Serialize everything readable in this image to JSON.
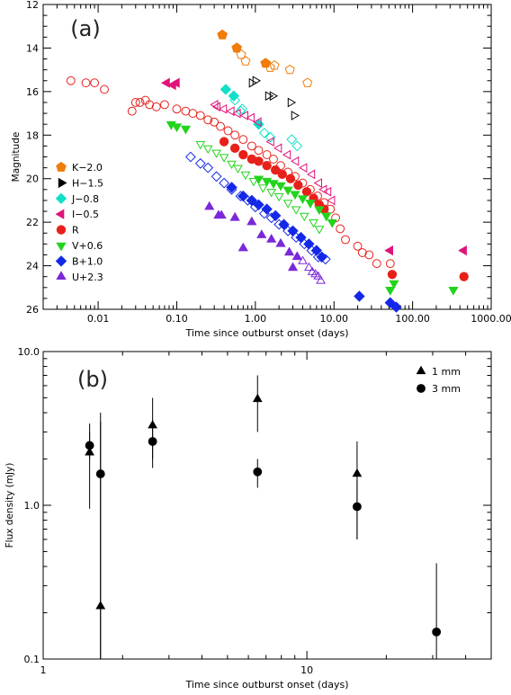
{
  "chart_data": [
    {
      "type": "scatter",
      "panel_label": "(a)",
      "xlabel": "Time since outburst onset (days)",
      "ylabel": "Magnitude",
      "xscale": "log",
      "xlim": [
        0.002,
        1000
      ],
      "ylim": [
        26,
        12
      ],
      "y_reversed": true,
      "x_ticks": [
        0.01,
        0.1,
        1,
        10,
        100,
        1000
      ],
      "x_tick_labels": [
        "0.01",
        "0.10",
        "1.00",
        "10.00",
        "100.00",
        "1000.00"
      ],
      "y_ticks": [
        12,
        14,
        16,
        18,
        20,
        22,
        24,
        26
      ],
      "y_tick_labels": [
        "12",
        "14",
        "16",
        "18",
        "20",
        "22",
        "24",
        "26"
      ],
      "legend_position": "left-middle",
      "series": [
        {
          "name": "K−2.0",
          "marker": "pentagon",
          "color": "#f07c0a",
          "filled": [
            [
              0.38,
              13.4
            ],
            [
              0.58,
              14.0
            ],
            [
              1.35,
              14.7
            ]
          ],
          "open": [
            [
              0.66,
              14.3
            ],
            [
              0.75,
              14.6
            ],
            [
              1.55,
              14.9
            ],
            [
              1.75,
              14.8
            ],
            [
              2.75,
              15.0
            ],
            [
              4.6,
              15.6
            ]
          ]
        },
        {
          "name": "H−1.5",
          "marker": "triangle-right",
          "color": "#000000",
          "filled": [],
          "open": [
            [
              0.9,
              15.6
            ],
            [
              1.0,
              15.5
            ],
            [
              1.45,
              16.2
            ],
            [
              1.65,
              16.2
            ],
            [
              2.8,
              16.5
            ],
            [
              3.1,
              17.1
            ]
          ]
        },
        {
          "name": "J−0.8",
          "marker": "diamond",
          "color": "#10e0c8",
          "filled": [
            [
              0.42,
              15.9
            ],
            [
              0.53,
              16.2
            ],
            [
              1.1,
              17.5
            ]
          ],
          "open": [
            [
              0.55,
              16.4
            ],
            [
              0.65,
              16.9
            ],
            [
              0.68,
              16.8
            ],
            [
              1.3,
              17.9
            ],
            [
              1.55,
              18.1
            ],
            [
              2.9,
              18.2
            ],
            [
              3.4,
              18.5
            ]
          ]
        },
        {
          "name": "I−0.5",
          "marker": "triangle-left",
          "color": "#e0147a",
          "filled": [
            [
              0.075,
              15.6
            ],
            [
              0.09,
              15.7
            ],
            [
              0.1,
              15.6
            ],
            [
              52,
              23.3
            ],
            [
              450,
              23.3
            ]
          ],
          "open": [
            [
              0.31,
              16.6
            ],
            [
              0.33,
              16.7
            ],
            [
              0.4,
              16.8
            ],
            [
              0.5,
              16.9
            ],
            [
              0.6,
              17.0
            ],
            [
              0.75,
              17.1
            ],
            [
              0.9,
              17.2
            ],
            [
              1.1,
              17.4
            ],
            [
              1.6,
              18.3
            ],
            [
              2.0,
              18.6
            ],
            [
              2.6,
              18.9
            ],
            [
              3.3,
              19.2
            ],
            [
              4.2,
              19.5
            ],
            [
              5.3,
              19.8
            ],
            [
              6.5,
              20.2
            ],
            [
              7.5,
              20.5
            ],
            [
              8.5,
              20.6
            ],
            [
              9.5,
              21.0
            ]
          ]
        },
        {
          "name": "R",
          "marker": "circle",
          "color": "#e8201a",
          "filled": [
            [
              0.4,
              18.3
            ],
            [
              0.55,
              18.6
            ],
            [
              0.7,
              18.9
            ],
            [
              0.9,
              19.1
            ],
            [
              1.1,
              19.2
            ],
            [
              1.4,
              19.4
            ],
            [
              1.8,
              19.6
            ],
            [
              2.2,
              19.8
            ],
            [
              2.8,
              20.0
            ],
            [
              3.5,
              20.3
            ],
            [
              4.5,
              20.6
            ],
            [
              5.5,
              20.9
            ],
            [
              6.5,
              21.2
            ],
            [
              7.5,
              21.4
            ],
            [
              55,
              24.4
            ],
            [
              450,
              24.5
            ]
          ],
          "open": [
            [
              0.0045,
              15.5
            ],
            [
              0.007,
              15.6
            ],
            [
              0.009,
              15.6
            ],
            [
              0.012,
              15.9
            ],
            [
              0.027,
              16.9
            ],
            [
              0.03,
              16.5
            ],
            [
              0.034,
              16.5
            ],
            [
              0.04,
              16.4
            ],
            [
              0.045,
              16.6
            ],
            [
              0.055,
              16.7
            ],
            [
              0.07,
              16.6
            ],
            [
              0.1,
              16.8
            ],
            [
              0.13,
              16.9
            ],
            [
              0.16,
              17.0
            ],
            [
              0.2,
              17.1
            ],
            [
              0.25,
              17.3
            ],
            [
              0.3,
              17.4
            ],
            [
              0.36,
              17.6
            ],
            [
              0.45,
              17.8
            ],
            [
              0.55,
              18.0
            ],
            [
              0.7,
              18.2
            ],
            [
              0.9,
              18.5
            ],
            [
              1.1,
              18.7
            ],
            [
              1.4,
              18.9
            ],
            [
              1.7,
              19.1
            ],
            [
              2.1,
              19.4
            ],
            [
              2.6,
              19.7
            ],
            [
              3.2,
              19.9
            ],
            [
              4.0,
              20.2
            ],
            [
              5.0,
              20.5
            ],
            [
              6.2,
              20.8
            ],
            [
              7.5,
              21.1
            ],
            [
              9,
              21.4
            ],
            [
              10.5,
              21.8
            ],
            [
              12,
              22.3
            ],
            [
              14,
              22.8
            ],
            [
              20,
              23.1
            ],
            [
              23,
              23.4
            ],
            [
              28,
              23.5
            ],
            [
              35,
              23.9
            ],
            [
              52,
              23.9
            ]
          ]
        },
        {
          "name": "V+0.6",
          "marker": "triangle-down",
          "color": "#22d41c",
          "filled": [
            [
              0.085,
              17.5
            ],
            [
              0.1,
              17.6
            ],
            [
              0.13,
              17.7
            ],
            [
              1.1,
              20.0
            ],
            [
              1.4,
              20.1
            ],
            [
              1.7,
              20.2
            ],
            [
              2.1,
              20.3
            ],
            [
              2.6,
              20.5
            ],
            [
              3.2,
              20.7
            ],
            [
              4.0,
              20.9
            ],
            [
              5,
              21.1
            ],
            [
              6.5,
              21.4
            ],
            [
              8,
              21.7
            ],
            [
              9.5,
              22.0
            ],
            [
              52,
              25.1
            ],
            [
              58,
              24.8
            ],
            [
              330,
              25.1
            ]
          ],
          "open": [
            [
              0.2,
              18.4
            ],
            [
              0.25,
              18.6
            ],
            [
              0.32,
              18.8
            ],
            [
              0.4,
              19.0
            ],
            [
              0.5,
              19.3
            ],
            [
              0.6,
              19.5
            ],
            [
              0.75,
              19.8
            ],
            [
              0.95,
              20.1
            ],
            [
              1.25,
              20.4
            ],
            [
              1.6,
              20.6
            ],
            [
              2.0,
              20.8
            ],
            [
              2.6,
              21.1
            ],
            [
              3.3,
              21.4
            ],
            [
              4.2,
              21.7
            ],
            [
              5.5,
              22.0
            ],
            [
              6.5,
              22.3
            ]
          ]
        },
        {
          "name": "B+1.0",
          "marker": "diamond",
          "color": "#1428e8",
          "filled": [
            [
              0.5,
              20.4
            ],
            [
              0.7,
              20.8
            ],
            [
              0.9,
              21.0
            ],
            [
              1.1,
              21.2
            ],
            [
              1.4,
              21.4
            ],
            [
              1.8,
              21.7
            ],
            [
              2.3,
              22.1
            ],
            [
              3.0,
              22.4
            ],
            [
              3.8,
              22.7
            ],
            [
              4.8,
              23.0
            ],
            [
              6,
              23.3
            ],
            [
              7,
              23.6
            ],
            [
              21,
              25.4
            ],
            [
              52,
              25.7
            ],
            [
              62,
              25.9
            ]
          ],
          "open": [
            [
              0.15,
              19.0
            ],
            [
              0.2,
              19.3
            ],
            [
              0.25,
              19.5
            ],
            [
              0.32,
              19.9
            ],
            [
              0.4,
              20.2
            ],
            [
              0.5,
              20.5
            ],
            [
              0.65,
              20.8
            ],
            [
              0.8,
              21.0
            ],
            [
              1.0,
              21.3
            ],
            [
              1.3,
              21.6
            ],
            [
              1.6,
              21.8
            ],
            [
              2.0,
              22.1
            ],
            [
              2.6,
              22.4
            ],
            [
              3.3,
              22.7
            ],
            [
              4.2,
              23.0
            ],
            [
              5.2,
              23.3
            ],
            [
              6.3,
              23.6
            ],
            [
              7.8,
              23.7
            ]
          ]
        },
        {
          "name": "U+2.3",
          "marker": "triangle-up",
          "color": "#7a28d8",
          "filled": [
            [
              0.26,
              21.3
            ],
            [
              0.34,
              21.7
            ],
            [
              0.37,
              21.7
            ],
            [
              0.55,
              21.8
            ],
            [
              0.9,
              22.0
            ],
            [
              1.2,
              22.6
            ],
            [
              1.6,
              22.8
            ],
            [
              2.1,
              23.0
            ],
            [
              0.7,
              23.2
            ],
            [
              2.7,
              23.4
            ],
            [
              3.4,
              23.6
            ],
            [
              3.0,
              24.1
            ]
          ],
          "open": [
            [
              4.0,
              23.8
            ],
            [
              4.8,
              24.1
            ],
            [
              5.3,
              24.3
            ],
            [
              5.8,
              24.4
            ],
            [
              6.3,
              24.5
            ],
            [
              6.8,
              24.7
            ]
          ]
        }
      ]
    },
    {
      "type": "scatter",
      "panel_label": "(b)",
      "xlabel": "Time since outburst onset (days)",
      "ylabel": "Flux density (mJy)",
      "xscale": "log",
      "yscale": "log",
      "xlim": [
        1,
        50
      ],
      "ylim": [
        0.1,
        10
      ],
      "x_ticks": [
        1,
        10
      ],
      "x_tick_labels": [
        "1",
        "10"
      ],
      "y_ticks": [
        0.1,
        1,
        10
      ],
      "y_tick_labels": [
        "0.1",
        "1.0",
        "10.0"
      ],
      "legend_position": "top-right",
      "series": [
        {
          "name": "1 mm",
          "marker": "triangle-up",
          "color": "#000000",
          "points": [
            {
              "x": 1.5,
              "y": 2.2,
              "ylo": 0.95,
              "yhi": 3.4
            },
            {
              "x": 1.65,
              "y": 0.22,
              "ylo": 0.1,
              "yhi": 4.0
            },
            {
              "x": 2.6,
              "y": 3.3,
              "ylo": 2.0,
              "yhi": 5.0
            },
            {
              "x": 6.5,
              "y": 4.9,
              "ylo": 3.0,
              "yhi": 7.0
            },
            {
              "x": 15.5,
              "y": 1.6,
              "ylo": 0.6,
              "yhi": 2.6
            }
          ]
        },
        {
          "name": "3 mm",
          "marker": "circle",
          "color": "#000000",
          "points": [
            {
              "x": 1.5,
              "y": 2.45,
              "ylo": 2.0,
              "yhi": 3.0
            },
            {
              "x": 1.65,
              "y": 1.6,
              "ylo": 0.1,
              "yhi": 3.5
            },
            {
              "x": 2.6,
              "y": 2.6,
              "ylo": 1.75,
              "yhi": 3.6
            },
            {
              "x": 6.5,
              "y": 1.65,
              "ylo": 1.3,
              "yhi": 2.0
            },
            {
              "x": 15.5,
              "y": 0.98,
              "ylo": 0.6,
              "yhi": 1.45
            },
            {
              "x": 31,
              "y": 0.15,
              "ylo": 0.1,
              "yhi": 0.42
            }
          ]
        }
      ]
    }
  ]
}
